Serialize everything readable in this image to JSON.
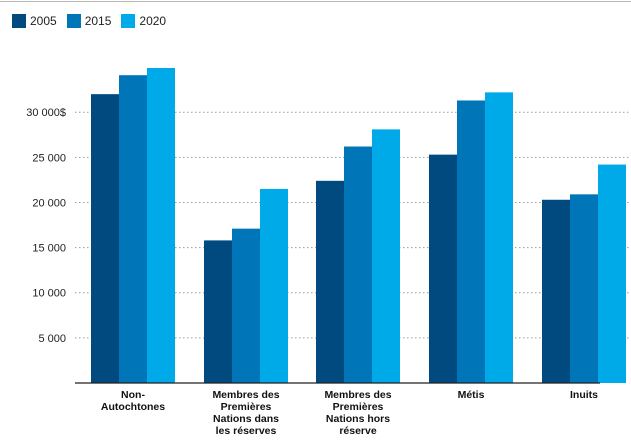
{
  "chart_data": {
    "type": "bar",
    "categories": [
      [
        "Non-",
        "Autochtones"
      ],
      [
        "Membres des",
        "Premières",
        "Nations dans",
        "les réserves"
      ],
      [
        "Membres des",
        "Premières",
        "Nations hors",
        "réserve"
      ],
      [
        "Métis"
      ],
      [
        "Inuits"
      ]
    ],
    "series": [
      {
        "name": "2005",
        "color": "#004a80",
        "values": [
          32000,
          15800,
          22400,
          25300,
          20300
        ]
      },
      {
        "name": "2015",
        "color": "#0075b8",
        "values": [
          34100,
          17100,
          26200,
          31300,
          20900
        ]
      },
      {
        "name": "2020",
        "color": "#00a9e8",
        "values": [
          34900,
          21500,
          28100,
          32200,
          24200
        ]
      }
    ],
    "yticks": [
      {
        "value": 5000,
        "label": "5 000"
      },
      {
        "value": 10000,
        "label": "10 000"
      },
      {
        "value": 15000,
        "label": "15 000"
      },
      {
        "value": 20000,
        "label": "20 000"
      },
      {
        "value": 25000,
        "label": "25 000"
      },
      {
        "value": 30000,
        "label": "30 000$"
      }
    ],
    "ylim": [
      0,
      38000
    ],
    "grid": "dotted horizontal",
    "legend_position": "top-left"
  }
}
